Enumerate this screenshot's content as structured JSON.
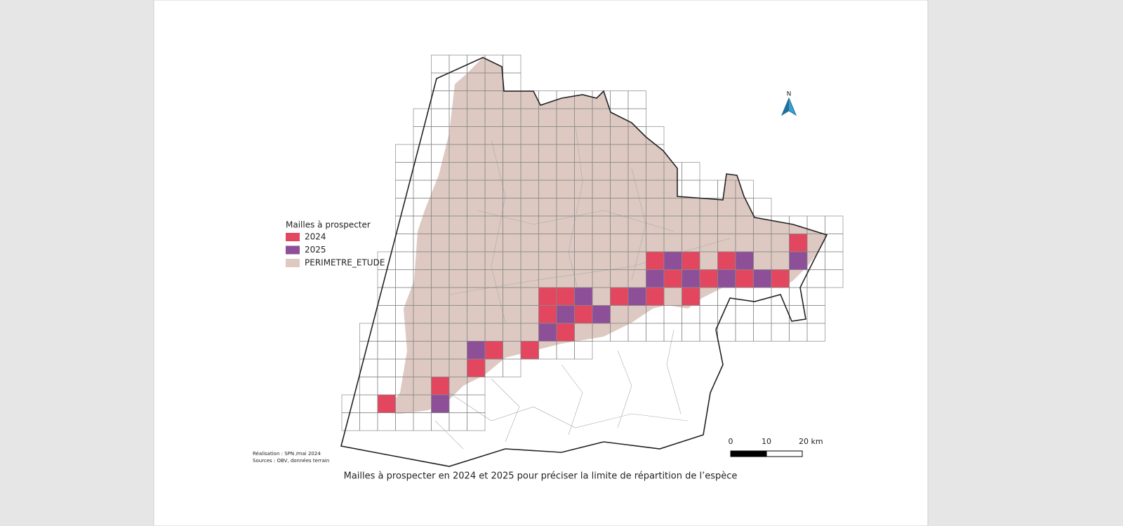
{
  "legend": {
    "title": "Mailles à prospecter",
    "items": [
      {
        "label": "2024",
        "color": "#e2475f"
      },
      {
        "label": "2025",
        "color": "#8d4f97"
      },
      {
        "label": "PERIMETRE_ETUDE",
        "color": "#ddc9c1"
      }
    ]
  },
  "north": "N",
  "scale": {
    "labels": [
      "0",
      "10",
      "20 km"
    ]
  },
  "credits": [
    "Réalisation : SPN /mai 2024",
    "Sources : OBV, données terrain"
  ],
  "caption": "Mailles à prospecter en 2024 et 2025 pour préciser la limite de répartition de l’espèce"
}
